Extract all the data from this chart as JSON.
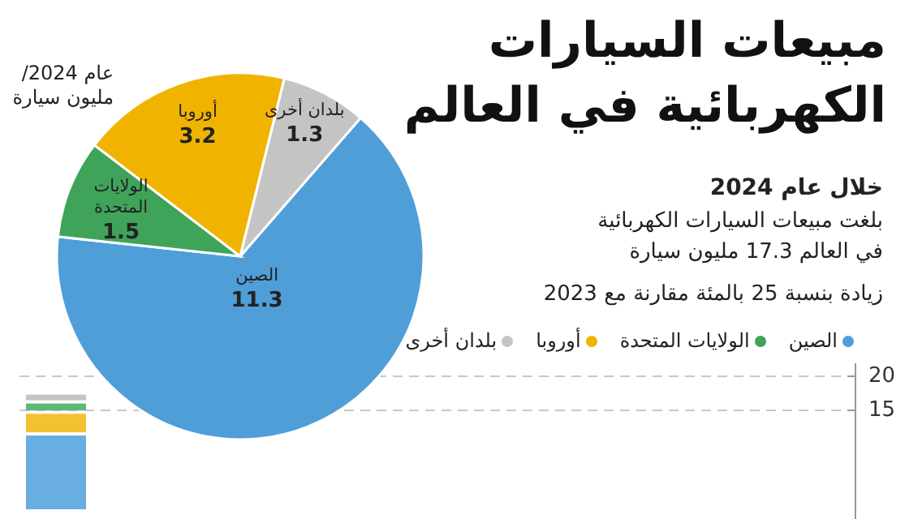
{
  "chart_data": [
    {
      "type": "pie",
      "title": "مبيعات السيارات الكهربائية في العالم",
      "subtitle": "خلال عام 2024",
      "annotations": [
        "بلغت مبيعات السيارات الكهربائية في العالم 17.3 مليون سيارة",
        "زيادة بنسبة 25 بالمئة مقارنة مع 2023",
        "عام 2024/ مليون سيارة"
      ],
      "categories": [
        "الصين",
        "الولايات المتحدة",
        "أوروبا",
        "بلدان أخرى"
      ],
      "values": [
        11.3,
        1.5,
        3.2,
        1.3
      ],
      "colors": [
        "#4f9ed8",
        "#3fa45a",
        "#f0b400",
        "#c4c4c4"
      ],
      "data_labels": true,
      "legend": "right"
    },
    {
      "type": "bar",
      "categories": [
        null
      ],
      "stacked": true,
      "series": [
        {
          "color": "#68aee2",
          "values": [
            11.3
          ]
        },
        {
          "color": "#f3c233",
          "values": [
            3.2
          ]
        },
        {
          "color": "#5cb874",
          "values": [
            1.5
          ]
        },
        {
          "color": "#c4c4c4",
          "values": [
            1.3
          ]
        }
      ],
      "ylim": [
        0,
        20
      ],
      "yticks": [
        15,
        20
      ],
      "grid": "y"
    }
  ]
}
